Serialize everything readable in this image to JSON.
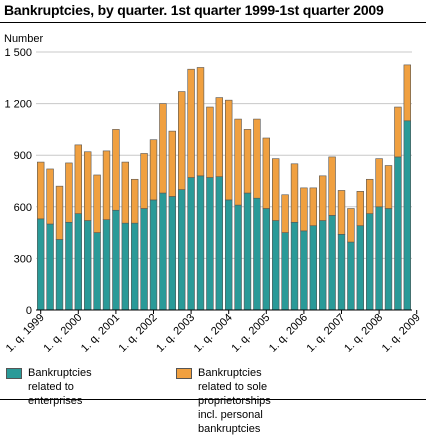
{
  "chart_data": {
    "type": "bar",
    "stacked": true,
    "title": "Bankruptcies, by quarter. 1st quarter 1999-1st quarter 2009",
    "ylabel": "Number",
    "ylim": [
      0,
      1500
    ],
    "yticks": [
      0,
      300,
      600,
      900,
      1200,
      1500
    ],
    "ytick_labels": [
      "0",
      "300",
      "600",
      "900",
      "1 200",
      "1 500"
    ],
    "grid": true,
    "legend_position": "bottom",
    "xtick_labels": [
      "1. q. 1999",
      "1. q. 2000",
      "1. q. 2001",
      "1. q. 2002",
      "1. q. 2003",
      "1. q. 2004",
      "1. q. 2005",
      "1. q. 2006",
      "1. q. 2007",
      "1. q. 2008",
      "1. q. 2009"
    ],
    "xtick_every": 4,
    "series": [
      {
        "name": "Bankruptcies related to enterprises",
        "color": "#2a9a98",
        "values": [
          530,
          500,
          410,
          510,
          560,
          520,
          450,
          525,
          580,
          505,
          505,
          590,
          640,
          680,
          660,
          700,
          770,
          780,
          770,
          775,
          640,
          610,
          680,
          650,
          590,
          520,
          450,
          510,
          460,
          490,
          520,
          550,
          440,
          395,
          490,
          560,
          600,
          590,
          890,
          1100
        ]
      },
      {
        "name": "Bankruptcies related to sole proprietorships incl. personal bankruptcies",
        "color": "#f0a040",
        "values": [
          330,
          320,
          310,
          345,
          400,
          400,
          335,
          400,
          470,
          355,
          255,
          320,
          350,
          520,
          380,
          570,
          630,
          630,
          410,
          460,
          580,
          500,
          370,
          460,
          410,
          360,
          220,
          340,
          250,
          220,
          260,
          340,
          255,
          195,
          200,
          200,
          280,
          250,
          290,
          325
        ]
      }
    ]
  },
  "legend": {
    "enterprises_line1": "Bankruptcies",
    "enterprises_line2": "related to enterprises",
    "sole_line1": "Bankruptcies related to sole proprietorships",
    "sole_line2": "incl. personal bankruptcies"
  },
  "colors": {
    "enterprises": "#2a9a98",
    "sole": "#f0a040",
    "grid": "#c8c8c8",
    "bar_edge": "#555555"
  }
}
